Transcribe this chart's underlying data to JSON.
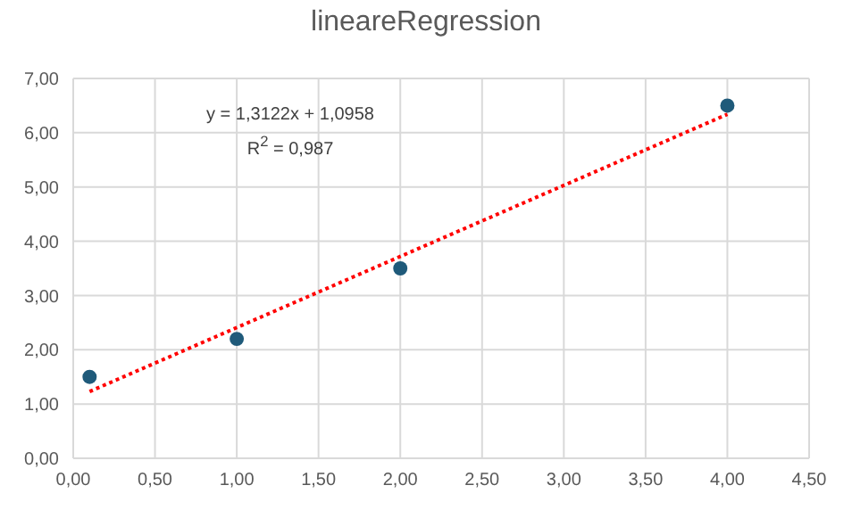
{
  "chart_data": {
    "type": "scatter",
    "title": "lineareRegression",
    "series": [
      {
        "color": "#1f5a7a",
        "x": [
          0.1,
          1,
          2,
          4
        ],
        "values": [
          1.5,
          2.2,
          3.5,
          6.5
        ]
      },
      {
        "type": "line",
        "color": "#ff0000",
        "line_style": "dotted",
        "marker": "none",
        "x": [
          0.1,
          4
        ],
        "values": [
          1.23,
          6.34
        ]
      }
    ],
    "annotations": [
      "y = 1,3122x + 1,0958",
      "R$^{2}$ = 0,987"
    ],
    "xlim": [
      0,
      4.5
    ],
    "xticks": [
      {
        "value": 0,
        "label": "0,00"
      },
      {
        "value": 0.5,
        "label": "0,50"
      },
      {
        "value": 1,
        "label": "1,00"
      },
      {
        "value": 1.5,
        "label": "1,50"
      },
      {
        "value": 2,
        "label": "2,00"
      },
      {
        "value": 2.5,
        "label": "2,50"
      },
      {
        "value": 3,
        "label": "3,00"
      },
      {
        "value": 3.5,
        "label": "3,50"
      },
      {
        "value": 4,
        "label": "4,00"
      },
      {
        "value": 4.5,
        "label": "4,50"
      }
    ],
    "ylim": [
      0,
      7
    ],
    "yticks": [
      {
        "value": 0,
        "label": "0,00"
      },
      {
        "value": 1,
        "label": "1,00"
      },
      {
        "value": 2,
        "label": "2,00"
      },
      {
        "value": 3,
        "label": "3,00"
      },
      {
        "value": 4,
        "label": "4,00"
      },
      {
        "value": 5,
        "label": "5,00"
      },
      {
        "value": 6,
        "label": "6,00"
      },
      {
        "value": 7,
        "label": "7,00"
      }
    ],
    "grid": true,
    "marker": "circle"
  }
}
